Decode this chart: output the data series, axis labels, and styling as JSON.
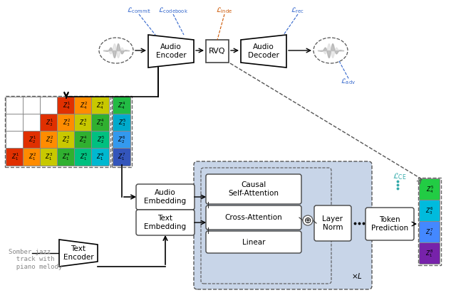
{
  "bg": "#ffffff",
  "light_blue": "#c8d5e8",
  "row_colors": [
    [
      "#ffffff",
      "#ffffff",
      "#ffffff",
      "#e03000",
      "#ff8c00",
      "#c8c800"
    ],
    [
      "#ffffff",
      "#ffffff",
      "#e03000",
      "#ff8c00",
      "#c8c800",
      "#30b030"
    ],
    [
      "#ffffff",
      "#e03000",
      "#ff8c00",
      "#c8c800",
      "#30b030",
      "#00c080"
    ],
    [
      "#e03000",
      "#ff8c00",
      "#c8c800",
      "#30b030",
      "#00c080",
      "#00b8d0"
    ]
  ],
  "z_labels_row": [
    [
      null,
      null,
      null,
      [
        "1",
        "4"
      ],
      [
        "2",
        "4"
      ],
      [
        "3",
        "4"
      ]
    ],
    [
      null,
      null,
      [
        "1",
        "3"
      ],
      [
        "2",
        "3"
      ],
      [
        "3",
        "3"
      ],
      [
        "4",
        "3"
      ]
    ],
    [
      null,
      [
        "1",
        "2"
      ],
      [
        "2",
        "2"
      ],
      [
        "3",
        "2"
      ],
      [
        "4",
        "2"
      ],
      [
        "5",
        "2"
      ]
    ],
    [
      [
        "1",
        "1"
      ],
      [
        "2",
        "1"
      ],
      [
        "3",
        "1"
      ],
      [
        "4",
        "1"
      ],
      [
        "5",
        "1"
      ],
      [
        "6",
        "1"
      ]
    ]
  ],
  "sep_colors": [
    "#22bb44",
    "#00aacc",
    "#3399ee",
    "#3355bb"
  ],
  "sep_labels": [
    [
      "4",
      "4"
    ],
    [
      "5",
      "3"
    ],
    [
      "6",
      "2"
    ],
    [
      "7",
      "1"
    ]
  ],
  "out_colors": [
    "#22cc44",
    "#00bbdd",
    "#4488ff",
    "#7722aa"
  ],
  "out_labels": [
    [
      "5",
      "4"
    ],
    [
      "6",
      "3"
    ],
    [
      "7",
      "2"
    ],
    [
      "8",
      "1"
    ]
  ]
}
